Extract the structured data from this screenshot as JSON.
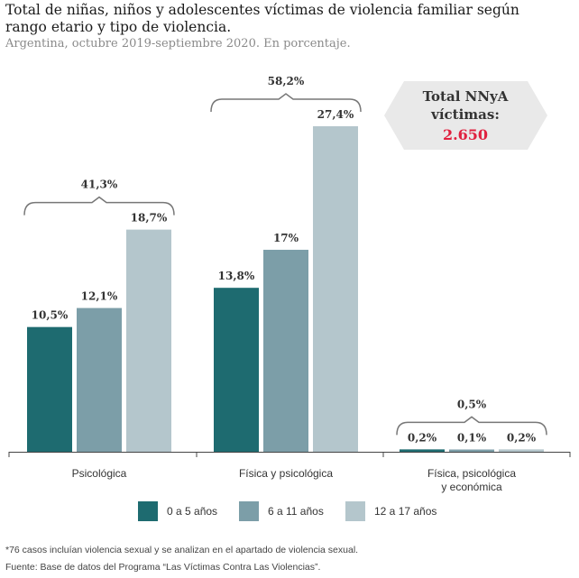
{
  "title": "Total de niñas, niños y adolescentes víctimas de violencia familiar según rango etario y tipo de violencia.",
  "subtitle": "Argentina, octubre 2019-septiembre 2020. En porcentaje.",
  "callout": {
    "label_line1": "Total NNyA",
    "label_line2": "víctimas:",
    "value": "2.650"
  },
  "chart_data": {
    "type": "bar",
    "categories": [
      "Psicológica",
      "Física y psicológica",
      "Física, psicológica y económica"
    ],
    "category_label_lines": [
      [
        "Psicológica"
      ],
      [
        "Física y psicológica"
      ],
      [
        "Física, psicológica",
        "y económica"
      ]
    ],
    "series": [
      {
        "name": "0 a 5 años",
        "values": [
          10.5,
          13.8,
          0.2
        ],
        "labels": [
          "10,5%",
          "13,8%",
          "0,2%"
        ],
        "color": "#1e6b70"
      },
      {
        "name": "6 a 11 años",
        "values": [
          12.1,
          17,
          0.1
        ],
        "labels": [
          "12,1%",
          "17%",
          "0,1%"
        ],
        "color": "#7c9ea8"
      },
      {
        "name": "12 a 17 años",
        "values": [
          18.7,
          27.4,
          0.2
        ],
        "labels": [
          "18,7%",
          "27,4%",
          "0,2%"
        ],
        "color": "#b4c6cc"
      }
    ],
    "group_totals": [
      41.3,
      58.2,
      0.5
    ],
    "group_total_labels": [
      "41,3%",
      "58,2%",
      "0,5%"
    ],
    "ylim": [
      0,
      27.4
    ],
    "legend_position": "bottom"
  },
  "notes": [
    "*76 casos incluían violencia sexual y se analizan en el apartado de violencia sexual.",
    "Fuente: Base de datos del Programa “Las Víctimas Contra Las Violencias”."
  ],
  "colors": {
    "accent": "#e0213f",
    "callout_bg": "#e9e9e9"
  }
}
